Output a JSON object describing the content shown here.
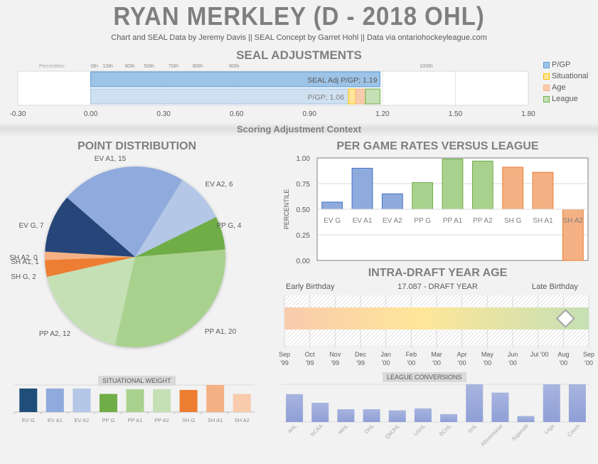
{
  "header": {
    "title": "RYAN MERKLEY (D - 2018 OHL)",
    "subtitle": "Chart and SEAL Data by Jeremy Davis || SEAL Concept by Garret Hohl || Data via ontariohockeyleague.com"
  },
  "section_context": "Scoring Adjustment Context",
  "colors": {
    "pgp": "#9dc3e6",
    "pgp_light": "#cfe0f1",
    "situational": "#ffe699",
    "age": "#f8cbad",
    "league": "#c5e0b4",
    "ev": "#8faadc",
    "pp": "#a9d18e",
    "sh": "#f4b183"
  },
  "chart_data": [
    {
      "id": "seal",
      "type": "bar",
      "orientation": "horizontal-stacked",
      "title": "SEAL ADJUSTMENTS",
      "percentile_prefix": "Percentiles:",
      "percentile_marks": [
        {
          "label": "0th",
          "value": 0.0
        },
        {
          "label": "10th",
          "value": 0.07
        },
        {
          "label": "30th",
          "value": 0.16
        },
        {
          "label": "50th",
          "value": 0.24
        },
        {
          "label": "70th",
          "value": 0.34
        },
        {
          "label": "80th",
          "value": 0.44
        },
        {
          "label": "90th",
          "value": 0.59
        },
        {
          "label": "100th",
          "value": 1.38
        }
      ],
      "xlim": [
        -0.3,
        1.8
      ],
      "xticks": [
        "-0.30",
        "0.00",
        "0.30",
        "0.60",
        "0.90",
        "1.20",
        "1.50",
        "1.80"
      ],
      "xtick_values": [
        -0.3,
        0,
        0.3,
        0.6,
        0.9,
        1.2,
        1.5,
        1.8
      ],
      "bars": [
        {
          "name": "SEAL Adj P/GP",
          "label": "SEAL Adj P/GP; 1.19",
          "value": 1.19
        },
        {
          "name": "P/GP",
          "label": "P/GP; 1.06",
          "segments": [
            {
              "series": "P/GP",
              "value": 1.06
            },
            {
              "series": "Situational",
              "value": 0.03
            },
            {
              "series": "Age",
              "value": 0.04
            },
            {
              "series": "League",
              "value": 0.06
            }
          ]
        }
      ],
      "legend": [
        "P/GP",
        "Situational",
        "Age",
        "League"
      ],
      "legend_position": "right"
    },
    {
      "id": "points",
      "type": "pie",
      "title": "POINT DISTRIBUTION",
      "slices": [
        {
          "label": "EV A1",
          "value": 15,
          "color": "#8faadc",
          "text": "EV A1, 15"
        },
        {
          "label": "EV A2",
          "value": 6,
          "color": "#b4c7e7",
          "text": "EV A2, 6"
        },
        {
          "label": "PP G",
          "value": 4,
          "color": "#70ad47",
          "text": "PP G, 4"
        },
        {
          "label": "PP A1",
          "value": 20,
          "color": "#a9d18e",
          "text": "PP A1, 20"
        },
        {
          "label": "PP A2",
          "value": 12,
          "color": "#c5e0b4",
          "text": "PP A2, 12"
        },
        {
          "label": "SH G",
          "value": 2,
          "color": "#ed7d31",
          "text": "SH G, 2"
        },
        {
          "label": "SH A1",
          "value": 1,
          "color": "#f4b183",
          "text": "SH A1, 1"
        },
        {
          "label": "SH A2",
          "value": 0,
          "color": "#f8cbad",
          "text": "SH A2, 0"
        },
        {
          "label": "EV G",
          "value": 7,
          "color": "#264478",
          "text": "EV G, 7"
        }
      ]
    },
    {
      "id": "rates",
      "type": "bar",
      "title": "PER GAME RATES VERSUS LEAGUE",
      "ylabel": "PERCENTILE",
      "ylim": [
        0,
        1
      ],
      "baseline": 0.5,
      "yticks": [
        "0.00",
        "0.25",
        "0.50",
        "0.75",
        "1.00"
      ],
      "ytick_values": [
        0,
        0.25,
        0.5,
        0.75,
        1.0
      ],
      "grid": true,
      "categories": [
        "EV G",
        "EV A1",
        "EV A2",
        "PP G",
        "PP A1",
        "PP A2",
        "SH G",
        "SH A1",
        "SH A2"
      ],
      "values": [
        0.57,
        0.9,
        0.65,
        0.76,
        0.99,
        0.97,
        0.91,
        0.86,
        0.0
      ],
      "groups": [
        "ev",
        "ev",
        "ev",
        "pp",
        "pp",
        "pp",
        "sh",
        "sh",
        "sh"
      ]
    },
    {
      "id": "age",
      "type": "scatter",
      "title": "INTRA-DRAFT YEAR AGE",
      "left_label": "Early Birthday",
      "center_label": "17.087 - DRAFT YEAR",
      "right_label": "Late Birthday",
      "months": [
        [
          "Sep",
          "'99"
        ],
        [
          "Oct",
          "'99"
        ],
        [
          "Nov",
          "'99"
        ],
        [
          "Dec",
          "'99"
        ],
        [
          "Jan",
          "'00"
        ],
        [
          "Feb",
          "'00"
        ],
        [
          "Mar",
          "'00"
        ],
        [
          "Apr",
          "'00"
        ],
        [
          "May",
          "'00"
        ],
        [
          "Jun",
          "'00"
        ],
        [
          "Jul '00",
          ""
        ],
        [
          "Aug",
          "'00"
        ],
        [
          "Sep",
          "'00"
        ]
      ],
      "marker_month_position": 11.5
    },
    {
      "id": "situational",
      "type": "bar",
      "title": "SITUATIONAL WEIGHT",
      "categories": [
        "EV G",
        "EV A1",
        "EV A2",
        "PP G",
        "PP A1",
        "PP A2",
        "SH G",
        "SH A1",
        "SH A2"
      ],
      "values": [
        1.0,
        1.0,
        1.0,
        0.77,
        0.97,
        0.97,
        0.94,
        1.15,
        0.77
      ],
      "colors": [
        "#1f4e79",
        "#8faadc",
        "#b4c7e7",
        "#70ad47",
        "#a9d18e",
        "#c5e0b4",
        "#ed7d31",
        "#f4b183",
        "#f8cbad"
      ],
      "ylim": [
        0,
        1.3
      ]
    },
    {
      "id": "league",
      "type": "bar",
      "title": "LEAGUE CONVERSIONS",
      "categories": [
        "AHL",
        "NCAA",
        "WHL",
        "OHL",
        "QMJHL",
        "USHL",
        "BCHL",
        "SHL",
        "Allsvenskan",
        "Superelit",
        "Liiga",
        "Czech"
      ],
      "values": [
        0.74,
        0.51,
        0.34,
        0.34,
        0.31,
        0.36,
        0.21,
        1.0,
        0.78,
        0.16,
        1.0,
        1.0
      ],
      "ylim": [
        0,
        1.0
      ]
    }
  ]
}
